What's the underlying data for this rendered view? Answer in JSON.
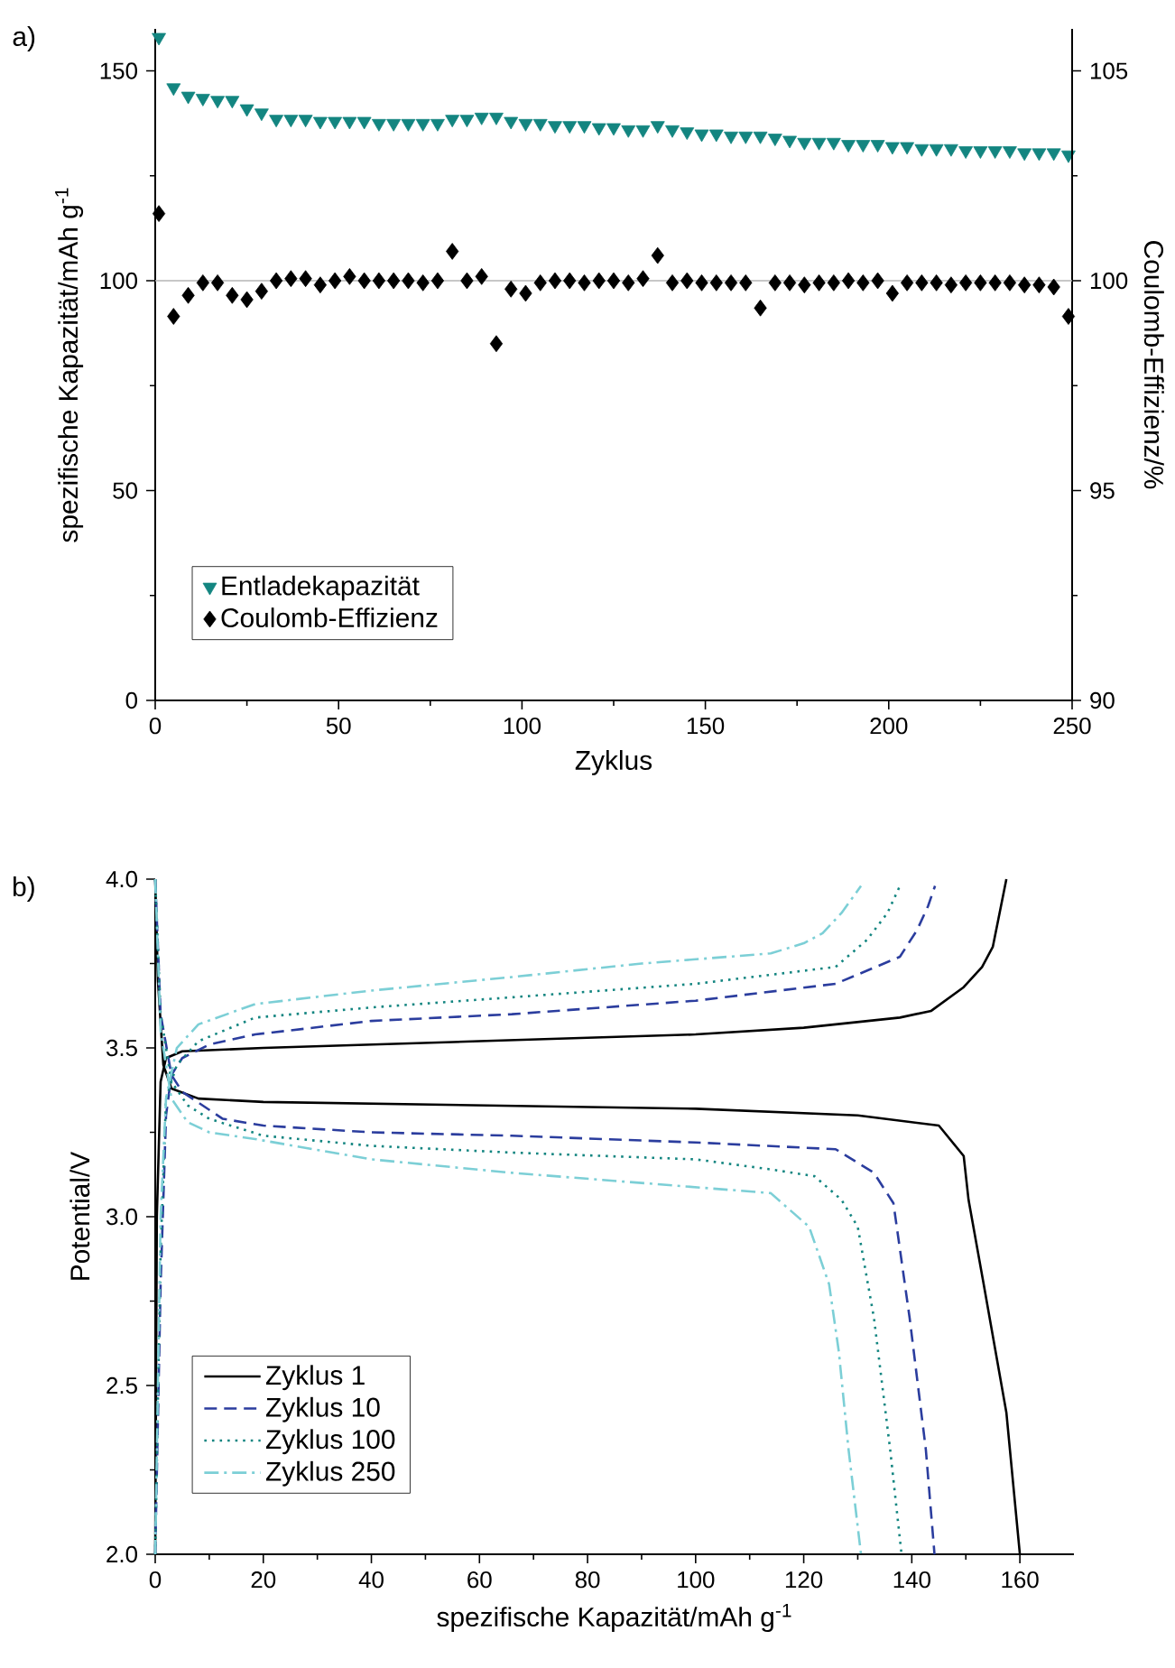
{
  "chart_data": [
    {
      "type": "scatter",
      "title": "a)",
      "xlabel": "Zyklus",
      "ylabel": "spezifische Kapazität/mAh g$^{-1}$",
      "y2label": "Coulomb-Effizienz/%",
      "x": [
        1,
        5,
        9,
        13,
        17,
        21,
        25,
        29,
        33,
        37,
        41,
        45,
        49,
        53,
        57,
        61,
        65,
        69,
        73,
        77,
        81,
        85,
        89,
        93,
        97,
        101,
        105,
        109,
        113,
        117,
        121,
        125,
        129,
        133,
        137,
        141,
        145,
        149,
        153,
        157,
        161,
        165,
        169,
        173,
        177,
        181,
        185,
        189,
        193,
        197,
        201,
        205,
        209,
        213,
        217,
        221,
        225,
        229,
        233,
        237,
        241,
        245,
        249
      ],
      "xlim": [
        0,
        250
      ],
      "xticks": [
        0,
        50,
        100,
        150,
        200,
        250
      ],
      "ylim": [
        0,
        160
      ],
      "yticks": [
        0,
        50,
        100,
        150
      ],
      "y2lim": [
        90,
        106
      ],
      "y2ticks": [
        90,
        95,
        100,
        105
      ],
      "legend": "bottom left",
      "ref_lines": [
        {
          "axis": "y2",
          "value": 100,
          "color": "#b4b4b4"
        }
      ],
      "series": [
        {
          "name": "Entladekapazität",
          "color": "#138580",
          "marker": "triangle",
          "values": [
            158,
            146,
            144,
            143.5,
            143,
            143,
            141,
            140,
            138.5,
            138.5,
            138.5,
            138,
            138,
            138,
            138,
            137.5,
            137.5,
            137.5,
            137.5,
            137.5,
            138.5,
            138.5,
            139,
            139,
            138,
            137.5,
            137.5,
            137,
            137,
            137,
            136.5,
            136.5,
            136,
            136,
            137,
            136,
            135.5,
            135,
            135,
            134.5,
            134.5,
            134.5,
            134,
            133.5,
            133,
            133,
            133,
            132.5,
            132.5,
            132.5,
            132,
            132,
            131.5,
            131.5,
            131.5,
            131,
            131,
            131,
            131,
            130.5,
            130.5,
            130.5,
            130
          ]
        },
        {
          "name": "Coulomb-Effizienz",
          "color": "#000000",
          "marker": "diamond",
          "axis": "y2",
          "values": [
            101.6,
            99.15,
            99.65,
            99.95,
            99.95,
            99.65,
            99.55,
            99.75,
            100,
            100.05,
            100.05,
            99.9,
            100,
            100.1,
            100,
            100,
            100,
            100,
            99.95,
            100,
            100.7,
            100,
            100.1,
            98.5,
            99.8,
            99.7,
            99.95,
            100,
            100,
            99.95,
            100,
            100,
            99.95,
            100.05,
            100.6,
            99.95,
            100,
            99.95,
            99.95,
            99.95,
            99.95,
            99.35,
            99.95,
            99.95,
            99.9,
            99.95,
            99.95,
            100,
            99.95,
            100,
            99.7,
            99.95,
            99.95,
            99.95,
            99.9,
            99.95,
            99.95,
            99.95,
            99.95,
            99.9,
            99.9,
            99.85,
            99.15
          ]
        }
      ]
    },
    {
      "type": "line",
      "title": "b)",
      "xlabel": "spezifische Kapazität/mAh g$^{-1}$",
      "ylabel": "Potential/V",
      "xlim": [
        0,
        170
      ],
      "xticks": [
        0,
        20,
        40,
        60,
        80,
        100,
        120,
        140,
        160
      ],
      "ylim": [
        2.0,
        4.0
      ],
      "yticks": [
        {
          "value": 2.0,
          "label": "2.0"
        },
        2.5,
        {
          "value": 3.0,
          "label": "3.0"
        },
        3.5,
        {
          "value": 4.0,
          "label": "4.0"
        }
      ],
      "legend": "bottom left",
      "series": [
        {
          "name": "Zyklus 1",
          "color": "#000000",
          "line_style": "solid",
          "x": [
            0,
            0.3,
            1,
            2,
            5,
            20,
            40,
            60,
            80,
            100,
            120,
            137.8,
            143.6,
            149.6,
            153,
            155,
            157.5,
            null,
            0,
            0.5,
            1.5,
            3,
            8,
            20,
            100,
            130,
            145,
            149.6,
            150.5,
            153.3,
            157.5,
            160
          ],
          "values": [
            2.0,
            3.0,
            3.4,
            3.47,
            3.49,
            3.5,
            3.51,
            3.52,
            3.53,
            3.54,
            3.56,
            3.59,
            3.61,
            3.68,
            3.74,
            3.8,
            4.0,
            null,
            4.0,
            3.7,
            3.45,
            3.38,
            3.35,
            3.34,
            3.32,
            3.3,
            3.27,
            3.18,
            3.05,
            2.8,
            2.42,
            2.0
          ]
        },
        {
          "name": "Zyklus 10",
          "color": "#2b3d9e",
          "line_style": "dashed",
          "x": [
            0,
            1,
            2,
            3,
            5,
            10,
            18.5,
            40,
            66,
            100,
            125.9,
            137.8,
            141,
            143,
            144.3,
            null,
            0,
            1,
            3,
            5,
            12.5,
            20,
            40,
            66,
            100,
            125.9,
            133,
            136.6,
            139.6,
            142.6,
            144.2
          ],
          "values": [
            2.0,
            2.8,
            3.3,
            3.42,
            3.47,
            3.51,
            3.54,
            3.58,
            3.6,
            3.64,
            3.69,
            3.77,
            3.85,
            3.92,
            3.98,
            null,
            4.0,
            3.6,
            3.42,
            3.37,
            3.29,
            3.27,
            3.25,
            3.24,
            3.22,
            3.2,
            3.13,
            3.04,
            2.7,
            2.31,
            2.0
          ]
        },
        {
          "name": "Zyklus 100",
          "color": "#138580",
          "line_style": "dotted",
          "x": [
            0,
            1,
            2,
            4,
            8,
            18.5,
            40,
            66,
            100,
            125.9,
            131.7,
            135.5,
            137.8,
            null,
            0,
            1,
            3,
            6,
            10,
            20,
            40,
            66,
            100,
            114,
            122,
            127,
            130,
            133,
            136,
            138.1
          ],
          "values": [
            2.0,
            2.9,
            3.35,
            3.45,
            3.52,
            3.59,
            3.62,
            3.65,
            3.69,
            3.74,
            3.82,
            3.9,
            3.98,
            null,
            4.0,
            3.6,
            3.4,
            3.33,
            3.29,
            3.24,
            3.21,
            3.19,
            3.17,
            3.14,
            3.12,
            3.05,
            2.97,
            2.7,
            2.31,
            2.0
          ]
        },
        {
          "name": "Zyklus 250",
          "color": "#7ccfd6",
          "line_style": "dashdot",
          "x": [
            0,
            1,
            2,
            4,
            8,
            18.5,
            40,
            66,
            90,
            113.9,
            120,
            123.5,
            127,
            130.6,
            null,
            0,
            1,
            3,
            6,
            10,
            18.5,
            40,
            66,
            90,
            113.9,
            121,
            124.7,
            126.5,
            128.3,
            130.6
          ],
          "values": [
            2.0,
            3.0,
            3.35,
            3.5,
            3.57,
            3.63,
            3.67,
            3.71,
            3.75,
            3.78,
            3.81,
            3.84,
            3.9,
            3.98,
            null,
            4.0,
            3.55,
            3.35,
            3.28,
            3.25,
            3.23,
            3.17,
            3.13,
            3.1,
            3.07,
            2.97,
            2.8,
            2.6,
            2.31,
            2.0
          ]
        }
      ]
    }
  ]
}
